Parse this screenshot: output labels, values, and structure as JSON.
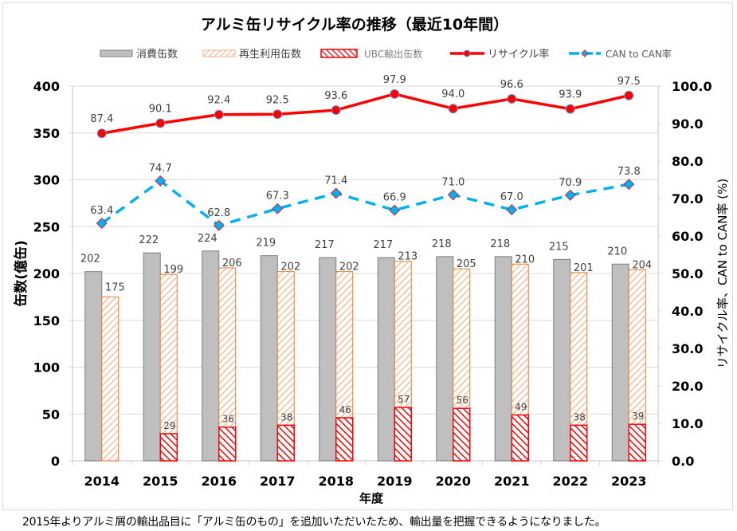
{
  "chart_data": {
    "type": "bar",
    "title": "アルミ缶リサイクル率の推移（最近10年間）",
    "xlabel": "年度",
    "ylabel": "缶数(億缶)",
    "y2label": "リサイクル率、CAN to CAN率 (%)",
    "categories": [
      "2014",
      "2015",
      "2016",
      "2017",
      "2018",
      "2019",
      "2020",
      "2021",
      "2022",
      "2023"
    ],
    "ylim": [
      0,
      400
    ],
    "yticks": [
      "0",
      "50",
      "100",
      "150",
      "200",
      "250",
      "300",
      "350",
      "400"
    ],
    "y2lim": [
      0,
      100
    ],
    "y2ticks": [
      "0.0",
      "10.0",
      "20.0",
      "30.0",
      "40.0",
      "50.0",
      "60.0",
      "70.0",
      "80.0",
      "90.0",
      "100.0"
    ],
    "grid": true,
    "legend_position": "top",
    "series": [
      {
        "name": "消費缶数",
        "kind": "bar",
        "axis": "left",
        "color": "#bfbfbf",
        "edge": "#7f7f7f",
        "values": [
          202,
          222,
          224,
          219,
          217,
          217,
          218,
          218,
          215,
          210
        ]
      },
      {
        "name": "再生利用缶数",
        "kind": "bar-hatched",
        "axis": "left",
        "color": "#f4b183",
        "edge": "#ed7d31",
        "values": [
          175,
          199,
          206,
          202,
          202,
          213,
          205,
          210,
          201,
          204
        ]
      },
      {
        "name": "UBC輸出缶数",
        "kind": "bar-hatched-overlay",
        "axis": "left",
        "color": "#ff0000",
        "edge": "#ff0000",
        "values": [
          null,
          29,
          36,
          38,
          46,
          57,
          56,
          49,
          38,
          39
        ]
      },
      {
        "name": "リサイクル率",
        "kind": "line",
        "axis": "right",
        "color": "#ff0000",
        "marker": "circle",
        "values": [
          87.4,
          90.1,
          92.4,
          92.5,
          93.6,
          97.9,
          94.0,
          96.6,
          93.9,
          97.5
        ],
        "labels": [
          "87.4",
          "90.1",
          "92.4",
          "92.5",
          "93.6",
          "97.9",
          "94.0",
          "96.6",
          "93.9",
          "97.5"
        ]
      },
      {
        "name": "CAN to CAN率",
        "kind": "line-dashed",
        "axis": "right",
        "color": "#00b0f0",
        "marker": "diamond",
        "values": [
          63.4,
          74.7,
          62.8,
          67.3,
          71.4,
          66.9,
          71.0,
          67.0,
          70.9,
          73.8
        ],
        "labels": [
          "63.4",
          "74.7",
          "62.8",
          "67.3",
          "71.4",
          "66.9",
          "71.0",
          "67.0",
          "70.9",
          "73.8"
        ]
      }
    ]
  },
  "footnote": "2015年よりアルミ屑の輸出品目に「アルミ缶のもの」を追加いただいたため、輸出量を把握できるようになりました。"
}
